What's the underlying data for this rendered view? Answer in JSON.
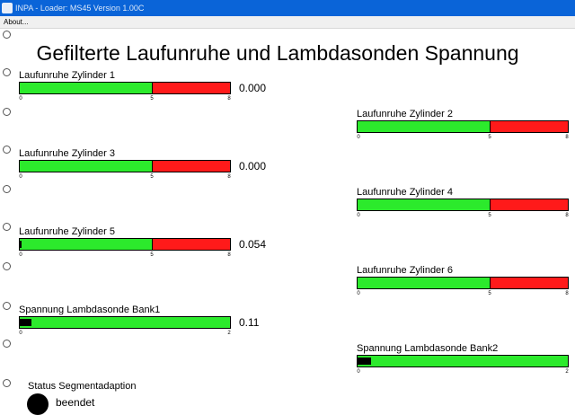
{
  "window": {
    "title": "INPA - Loader: MS45 Version 1.00C"
  },
  "menu": {
    "items": [
      "About..."
    ]
  },
  "page_title": "Gefilterte Laufunruhe und Lambdasonden Spannung",
  "colors": {
    "green": "#2cea2c",
    "red": "#ff1a1a",
    "titlebar": "#0a64d8"
  },
  "gauges": [
    {
      "label": "Laufunruhe Zylinder 1",
      "value": "0.000",
      "min": 0,
      "mid": 5,
      "max": 8,
      "ticks": [
        "0",
        "5",
        "8"
      ],
      "green_until": 5,
      "fill_fraction": 0
    },
    {
      "label": "Laufunruhe Zylinder 2",
      "value": "",
      "min": 0,
      "mid": 5,
      "max": 8,
      "ticks": [
        "0",
        "5",
        "8"
      ],
      "green_until": 5,
      "fill_fraction": 0
    },
    {
      "label": "Laufunruhe Zylinder 3",
      "value": "0.000",
      "min": 0,
      "mid": 5,
      "max": 8,
      "ticks": [
        "0",
        "5",
        "8"
      ],
      "green_until": 5,
      "fill_fraction": 0
    },
    {
      "label": "Laufunruhe Zylinder 4",
      "value": "",
      "min": 0,
      "mid": 5,
      "max": 8,
      "ticks": [
        "0",
        "5",
        "8"
      ],
      "green_until": 5,
      "fill_fraction": 0
    },
    {
      "label": "Laufunruhe Zylinder 5",
      "value": "0.054",
      "min": 0,
      "mid": 5,
      "max": 8,
      "ticks": [
        "0",
        "5",
        "8"
      ],
      "green_until": 5,
      "fill_fraction": 0.007
    },
    {
      "label": "Laufunruhe Zylinder 6",
      "value": "",
      "min": 0,
      "mid": 5,
      "max": 8,
      "ticks": [
        "0",
        "5",
        "8"
      ],
      "green_until": 5,
      "fill_fraction": 0
    },
    {
      "label": "Spannung Lambdasonde Bank1",
      "value": "0.11",
      "min": 0,
      "max": 2,
      "ticks": [
        "0",
        "2"
      ],
      "green_until": 2,
      "fill_fraction": 0.055
    },
    {
      "label": "Spannung Lambdasonde Bank2",
      "value": "",
      "min": 0,
      "max": 2,
      "ticks": [
        "0",
        "2"
      ],
      "green_until": 2,
      "fill_fraction": 0.065
    }
  ],
  "status": {
    "label": "Status Segmentadaption",
    "text": "beendet"
  }
}
